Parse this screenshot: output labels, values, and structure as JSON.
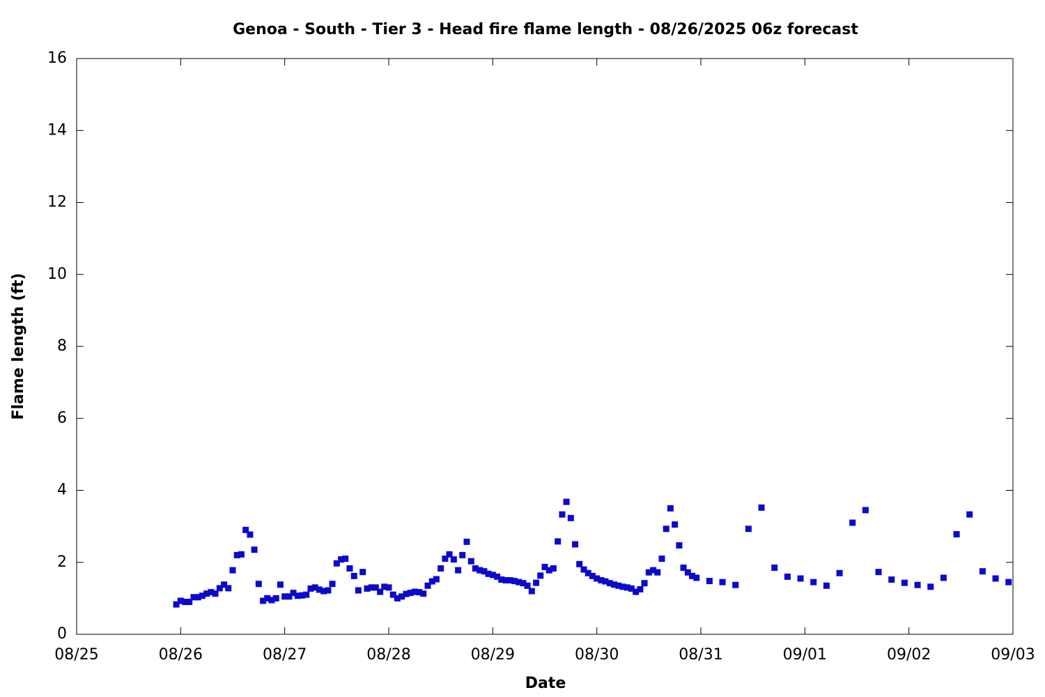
{
  "chart_data": {
    "type": "scatter",
    "title": "Genoa - South - Tier 3 - Head fire flame length - 08/26/2025 06z forecast",
    "x_label": "Date",
    "y_label": "Flame length (ft)",
    "xlim": [
      0,
      9
    ],
    "ylim": [
      0,
      16
    ],
    "xticks": [
      {
        "value": 0,
        "label": "08/25"
      },
      {
        "value": 1,
        "label": "08/26"
      },
      {
        "value": 2,
        "label": "08/27"
      },
      {
        "value": 3,
        "label": "08/28"
      },
      {
        "value": 4,
        "label": "08/29"
      },
      {
        "value": 5,
        "label": "08/30"
      },
      {
        "value": 6,
        "label": "08/31"
      },
      {
        "value": 7,
        "label": "09/01"
      },
      {
        "value": 8,
        "label": "09/02"
      },
      {
        "value": 9,
        "label": "09/03"
      }
    ],
    "yticks": [
      0,
      2,
      4,
      6,
      8,
      10,
      12,
      14,
      16
    ],
    "color": "#0a0acd",
    "x": [
      0.958,
      1,
      1.042,
      1.083,
      1.125,
      1.167,
      1.208,
      1.25,
      1.292,
      1.333,
      1.375,
      1.417,
      1.458,
      1.5,
      1.542,
      1.583,
      1.625,
      1.667,
      1.708,
      1.75,
      1.792,
      1.833,
      1.875,
      1.917,
      1.958,
      2,
      2.042,
      2.083,
      2.125,
      2.167,
      2.208,
      2.25,
      2.292,
      2.333,
      2.375,
      2.417,
      2.458,
      2.5,
      2.542,
      2.583,
      2.625,
      2.667,
      2.708,
      2.75,
      2.792,
      2.833,
      2.875,
      2.917,
      2.958,
      3,
      3.042,
      3.083,
      3.125,
      3.167,
      3.208,
      3.25,
      3.292,
      3.333,
      3.375,
      3.417,
      3.458,
      3.5,
      3.542,
      3.583,
      3.625,
      3.667,
      3.708,
      3.75,
      3.792,
      3.833,
      3.875,
      3.917,
      3.958,
      4,
      4.042,
      4.083,
      4.125,
      4.167,
      4.208,
      4.25,
      4.292,
      4.333,
      4.375,
      4.417,
      4.458,
      4.5,
      4.542,
      4.583,
      4.625,
      4.667,
      4.708,
      4.75,
      4.792,
      4.833,
      4.875,
      4.917,
      4.958,
      5,
      5.042,
      5.083,
      5.125,
      5.167,
      5.208,
      5.25,
      5.292,
      5.333,
      5.375,
      5.417,
      5.458,
      5.5,
      5.542,
      5.583,
      5.625,
      5.667,
      5.708,
      5.75,
      5.792,
      5.833,
      5.875,
      5.917,
      5.958,
      6.083,
      6.208,
      6.333,
      6.458,
      6.583,
      6.708,
      6.833,
      6.958,
      7.083,
      7.208,
      7.333,
      7.458,
      7.583,
      7.708,
      7.833,
      7.958,
      8.083,
      8.208,
      8.333,
      8.458,
      8.583,
      8.708,
      8.833,
      8.958
    ],
    "values": [
      0.83,
      0.93,
      0.9,
      0.9,
      1.03,
      1.03,
      1.07,
      1.13,
      1.17,
      1.13,
      1.28,
      1.38,
      1.28,
      1.78,
      2.2,
      2.22,
      2.9,
      2.77,
      2.35,
      1.4,
      0.93,
      1.0,
      0.95,
      1.0,
      1.38,
      1.05,
      1.05,
      1.15,
      1.07,
      1.08,
      1.1,
      1.27,
      1.3,
      1.24,
      1.2,
      1.22,
      1.4,
      1.97,
      2.08,
      2.1,
      1.83,
      1.62,
      1.22,
      1.73,
      1.27,
      1.3,
      1.3,
      1.18,
      1.32,
      1.3,
      1.1,
      1.0,
      1.05,
      1.12,
      1.15,
      1.18,
      1.17,
      1.13,
      1.35,
      1.47,
      1.53,
      1.83,
      2.1,
      2.22,
      2.08,
      1.78,
      2.2,
      2.57,
      2.03,
      1.83,
      1.78,
      1.75,
      1.68,
      1.65,
      1.6,
      1.52,
      1.5,
      1.5,
      1.48,
      1.45,
      1.42,
      1.35,
      1.2,
      1.43,
      1.63,
      1.87,
      1.78,
      1.83,
      2.58,
      3.33,
      3.68,
      3.23,
      2.5,
      1.95,
      1.8,
      1.7,
      1.62,
      1.55,
      1.5,
      1.47,
      1.42,
      1.38,
      1.35,
      1.32,
      1.3,
      1.27,
      1.18,
      1.25,
      1.42,
      1.72,
      1.78,
      1.72,
      2.1,
      2.93,
      3.5,
      3.05,
      2.47,
      1.85,
      1.72,
      1.62,
      1.57,
      1.48,
      1.45,
      1.37,
      2.93,
      3.52,
      1.85,
      1.6,
      1.55,
      1.45,
      1.35,
      1.7,
      3.1,
      3.45,
      1.73,
      1.52,
      1.43,
      1.37,
      1.32,
      1.57,
      2.78,
      3.33,
      1.75,
      1.55,
      1.45
    ]
  }
}
